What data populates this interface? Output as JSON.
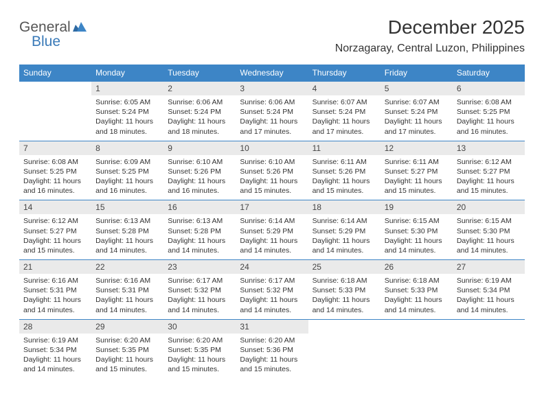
{
  "logo": {
    "general": "General",
    "blue": "Blue"
  },
  "header": {
    "month": "December 2025",
    "location": "Norzagaray, Central Luzon, Philippines"
  },
  "colors": {
    "header_bg": "#3d85c6",
    "header_text": "#ffffff",
    "daynum_bg": "#eaeaea",
    "border": "#3d85c6",
    "text": "#333333",
    "logo_gray": "#555555",
    "logo_blue": "#3a7ab8"
  },
  "weekdays": [
    "Sunday",
    "Monday",
    "Tuesday",
    "Wednesday",
    "Thursday",
    "Friday",
    "Saturday"
  ],
  "weeks": [
    {
      "nums": [
        "",
        "1",
        "2",
        "3",
        "4",
        "5",
        "6"
      ],
      "cells": [
        null,
        {
          "sr": "6:05 AM",
          "ss": "5:24 PM",
          "dl": "11 hours and 18 minutes."
        },
        {
          "sr": "6:06 AM",
          "ss": "5:24 PM",
          "dl": "11 hours and 18 minutes."
        },
        {
          "sr": "6:06 AM",
          "ss": "5:24 PM",
          "dl": "11 hours and 17 minutes."
        },
        {
          "sr": "6:07 AM",
          "ss": "5:24 PM",
          "dl": "11 hours and 17 minutes."
        },
        {
          "sr": "6:07 AM",
          "ss": "5:24 PM",
          "dl": "11 hours and 17 minutes."
        },
        {
          "sr": "6:08 AM",
          "ss": "5:25 PM",
          "dl": "11 hours and 16 minutes."
        }
      ]
    },
    {
      "nums": [
        "7",
        "8",
        "9",
        "10",
        "11",
        "12",
        "13"
      ],
      "cells": [
        {
          "sr": "6:08 AM",
          "ss": "5:25 PM",
          "dl": "11 hours and 16 minutes."
        },
        {
          "sr": "6:09 AM",
          "ss": "5:25 PM",
          "dl": "11 hours and 16 minutes."
        },
        {
          "sr": "6:10 AM",
          "ss": "5:26 PM",
          "dl": "11 hours and 16 minutes."
        },
        {
          "sr": "6:10 AM",
          "ss": "5:26 PM",
          "dl": "11 hours and 15 minutes."
        },
        {
          "sr": "6:11 AM",
          "ss": "5:26 PM",
          "dl": "11 hours and 15 minutes."
        },
        {
          "sr": "6:11 AM",
          "ss": "5:27 PM",
          "dl": "11 hours and 15 minutes."
        },
        {
          "sr": "6:12 AM",
          "ss": "5:27 PM",
          "dl": "11 hours and 15 minutes."
        }
      ]
    },
    {
      "nums": [
        "14",
        "15",
        "16",
        "17",
        "18",
        "19",
        "20"
      ],
      "cells": [
        {
          "sr": "6:12 AM",
          "ss": "5:27 PM",
          "dl": "11 hours and 15 minutes."
        },
        {
          "sr": "6:13 AM",
          "ss": "5:28 PM",
          "dl": "11 hours and 14 minutes."
        },
        {
          "sr": "6:13 AM",
          "ss": "5:28 PM",
          "dl": "11 hours and 14 minutes."
        },
        {
          "sr": "6:14 AM",
          "ss": "5:29 PM",
          "dl": "11 hours and 14 minutes."
        },
        {
          "sr": "6:14 AM",
          "ss": "5:29 PM",
          "dl": "11 hours and 14 minutes."
        },
        {
          "sr": "6:15 AM",
          "ss": "5:30 PM",
          "dl": "11 hours and 14 minutes."
        },
        {
          "sr": "6:15 AM",
          "ss": "5:30 PM",
          "dl": "11 hours and 14 minutes."
        }
      ]
    },
    {
      "nums": [
        "21",
        "22",
        "23",
        "24",
        "25",
        "26",
        "27"
      ],
      "cells": [
        {
          "sr": "6:16 AM",
          "ss": "5:31 PM",
          "dl": "11 hours and 14 minutes."
        },
        {
          "sr": "6:16 AM",
          "ss": "5:31 PM",
          "dl": "11 hours and 14 minutes."
        },
        {
          "sr": "6:17 AM",
          "ss": "5:32 PM",
          "dl": "11 hours and 14 minutes."
        },
        {
          "sr": "6:17 AM",
          "ss": "5:32 PM",
          "dl": "11 hours and 14 minutes."
        },
        {
          "sr": "6:18 AM",
          "ss": "5:33 PM",
          "dl": "11 hours and 14 minutes."
        },
        {
          "sr": "6:18 AM",
          "ss": "5:33 PM",
          "dl": "11 hours and 14 minutes."
        },
        {
          "sr": "6:19 AM",
          "ss": "5:34 PM",
          "dl": "11 hours and 14 minutes."
        }
      ]
    },
    {
      "nums": [
        "28",
        "29",
        "30",
        "31",
        "",
        "",
        ""
      ],
      "cells": [
        {
          "sr": "6:19 AM",
          "ss": "5:34 PM",
          "dl": "11 hours and 14 minutes."
        },
        {
          "sr": "6:20 AM",
          "ss": "5:35 PM",
          "dl": "11 hours and 15 minutes."
        },
        {
          "sr": "6:20 AM",
          "ss": "5:35 PM",
          "dl": "11 hours and 15 minutes."
        },
        {
          "sr": "6:20 AM",
          "ss": "5:36 PM",
          "dl": "11 hours and 15 minutes."
        },
        null,
        null,
        null
      ]
    }
  ],
  "labels": {
    "sunrise": "Sunrise:",
    "sunset": "Sunset:",
    "daylight": "Daylight:"
  }
}
